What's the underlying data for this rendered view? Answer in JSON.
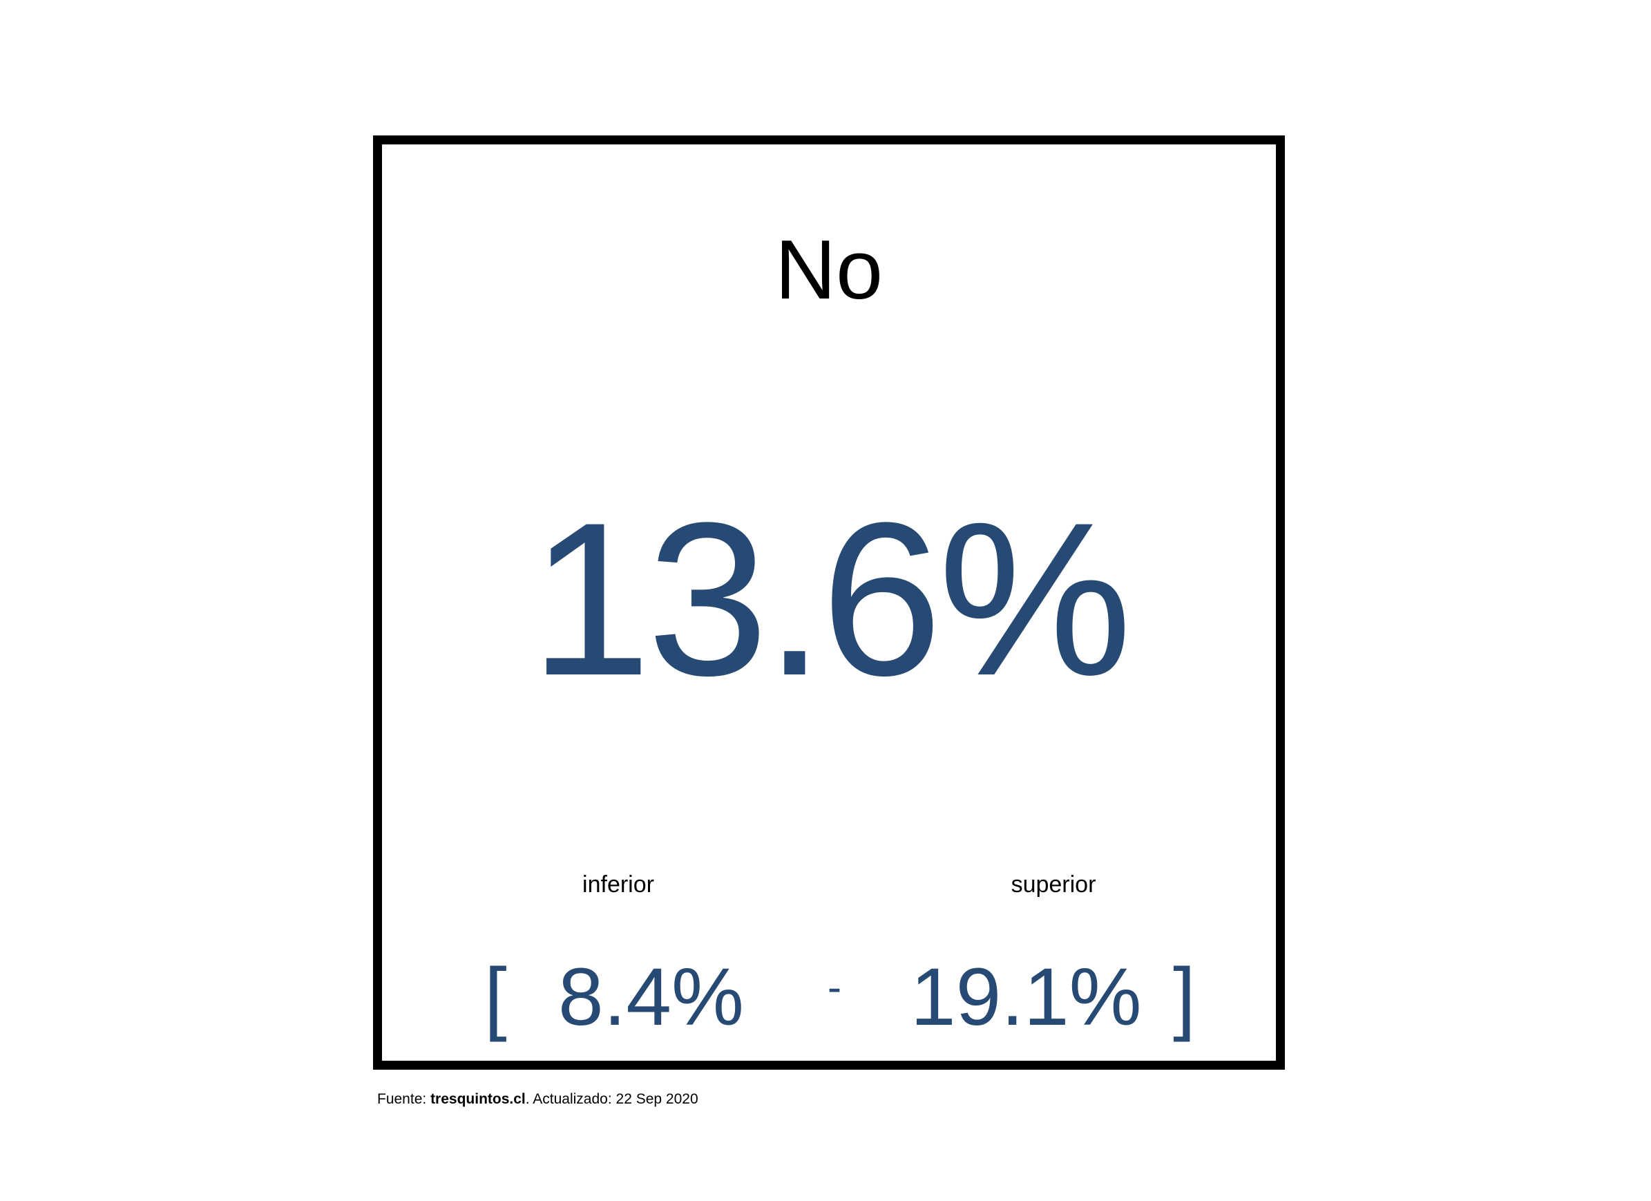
{
  "chart_data": {
    "type": "table",
    "title": "No",
    "value": "13.6%",
    "lower_label": "inferior",
    "upper_label": "superior",
    "lower_value": "8.4%",
    "upper_value": "19.1%",
    "bracket_open": "[",
    "bracket_close": "]",
    "separator": "-"
  },
  "footer": {
    "source_prefix": "Fuente: ",
    "source_name": "tresquintos.cl",
    "source_suffix": ". Actualizado: 22 Sep 2020"
  },
  "colors": {
    "value": "#264a73",
    "text": "#000000",
    "border": "#000000"
  }
}
